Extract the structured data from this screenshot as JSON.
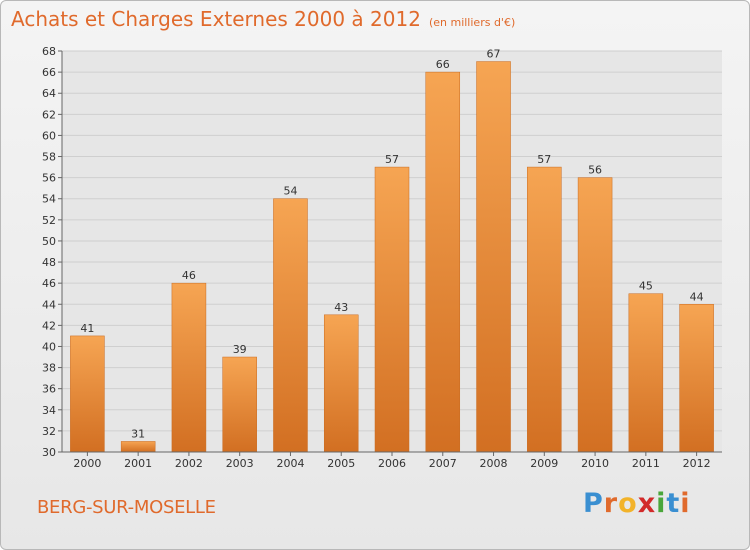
{
  "title": "Achats et Charges Externes 2000 à 2012",
  "unit_note": "(en milliers d'€)",
  "location": "BERG-SUR-MOSELLE",
  "logo": {
    "letters": [
      "P",
      "r",
      "o",
      "x",
      "i",
      "t",
      "i"
    ],
    "colors": [
      "#3a8fd1",
      "#e06a2c",
      "#f2b32a",
      "#d22a2a",
      "#4aa63a",
      "#3a8fd1",
      "#e06a2c"
    ]
  },
  "colors": {
    "bar": "#f0963e",
    "bar_dark": "#d9782a",
    "accent": "#e06a2c"
  },
  "chart_data": {
    "type": "bar",
    "title": "Achats et Charges Externes 2000 à 2012",
    "categories": [
      "2000",
      "2001",
      "2002",
      "2003",
      "2004",
      "2005",
      "2006",
      "2007",
      "2008",
      "2009",
      "2010",
      "2011",
      "2012"
    ],
    "values": [
      41,
      31,
      46,
      39,
      54,
      43,
      57,
      66,
      67,
      57,
      56,
      45,
      44
    ],
    "ylim": [
      30,
      68
    ],
    "yticks": [
      30,
      32,
      34,
      36,
      38,
      40,
      42,
      44,
      46,
      48,
      50,
      52,
      54,
      56,
      58,
      60,
      62,
      64,
      66,
      68
    ],
    "grid": true,
    "data_labels": true
  }
}
